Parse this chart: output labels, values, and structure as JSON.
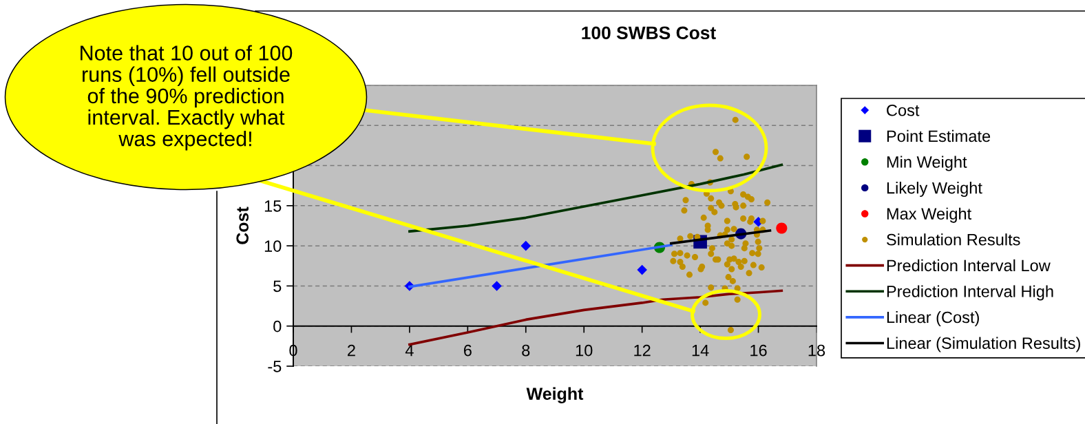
{
  "chart_data": {
    "type": "scatter",
    "title": "100 SWBS Cost",
    "xlabel": "Weight",
    "ylabel": "Cost",
    "annotations": [
      "Note that 10 out of 100 runs (10%) fell outside of the 90% prediction interval. Exactly what was expected!"
    ],
    "xlim": [
      0,
      18
    ],
    "ylim": [
      -5,
      30
    ],
    "xticks": [
      0,
      2,
      4,
      6,
      8,
      10,
      12,
      14,
      16,
      18
    ],
    "yticks": [
      -5,
      0,
      5,
      10,
      15,
      {
        "value": 20,
        "label": null
      },
      {
        "value": 25,
        "label": null
      },
      {
        "value": 30,
        "label": null
      }
    ],
    "grid": "y",
    "legend": "right",
    "series": [
      {
        "name": "Cost",
        "type": "scatter",
        "marker": "diamond",
        "color": "#0000ff",
        "x": [
          4,
          7,
          8,
          12,
          16
        ],
        "values": [
          5,
          5,
          10,
          7,
          13
        ]
      },
      {
        "name": "Point Estimate",
        "type": "scatter",
        "marker": "square",
        "color": "#000080",
        "x": [
          14.0
        ],
        "values": [
          10.5
        ]
      },
      {
        "name": "Min Weight",
        "type": "scatter",
        "marker": "circle",
        "color": "#008000",
        "x": [
          12.6
        ],
        "values": [
          9.8
        ]
      },
      {
        "name": "Likely Weight",
        "type": "scatter",
        "marker": "circle",
        "color": "#000080",
        "x": [
          15.4
        ],
        "values": [
          11.5
        ]
      },
      {
        "name": "Max Weight",
        "type": "scatter",
        "marker": "circle",
        "color": "#ff0000",
        "x": [
          16.8
        ],
        "values": [
          12.2
        ]
      },
      {
        "name": "Simulation Results",
        "type": "scatter",
        "marker": "circle",
        "color": "#bf9000",
        "x": [
          15.21,
          14.53,
          14.69,
          15.6,
          13.7,
          14.34,
          15.05,
          14.22,
          14.37,
          15.48,
          15.64,
          15.76,
          13.5,
          14.65,
          14.73,
          15.2,
          15.23,
          15.48,
          16.31,
          13.45,
          14.37,
          14.49,
          14.12,
          14.93,
          15.48,
          15.76,
          15.72,
          16.15,
          14.26,
          14.26,
          14.93,
          15.16,
          15.95,
          16.15,
          13.31,
          13.66,
          13.9,
          14.69,
          14.85,
          15.08,
          14.93,
          15.08,
          15.95,
          15.99,
          15.56,
          15.52,
          13.11,
          13.31,
          13.55,
          13.82,
          14.41,
          14.37,
          14.53,
          14.61,
          15.01,
          15.16,
          15.32,
          15.52,
          15.79,
          15.99,
          16.03,
          13.07,
          13.31,
          13.39,
          14.06,
          14.02,
          14.93,
          15.08,
          15.4,
          15.83,
          16.11,
          13.63,
          15.68,
          14.97,
          15.12,
          14.37,
          14.85,
          15.28,
          14.18,
          15.28,
          15.05
        ],
        "values": [
          25.7,
          21.7,
          20.9,
          21.1,
          17.7,
          17.9,
          16.8,
          16.5,
          15.9,
          16.4,
          16.1,
          15.8,
          15.7,
          15.4,
          15.0,
          15.2,
          14.8,
          15.0,
          15.4,
          14.4,
          14.7,
          14.2,
          13.5,
          13.1,
          13.4,
          13.4,
          13.0,
          13.1,
          12.5,
          12.0,
          12.0,
          12.1,
          12.0,
          12.0,
          10.9,
          11.2,
          11.1,
          11.3,
          11.4,
          10.8,
          10.3,
          10.0,
          11.4,
          10.5,
          10.3,
          9.7,
          9.0,
          9.1,
          8.8,
          8.6,
          9.7,
          9.0,
          8.3,
          8.3,
          8.3,
          8.4,
          8.0,
          8.1,
          9.1,
          9.0,
          9.7,
          8.1,
          8.0,
          7.4,
          7.4,
          7.1,
          7.7,
          7.1,
          7.4,
          7.6,
          7.3,
          6.4,
          6.6,
          6.1,
          5.6,
          4.8,
          4.7,
          4.7,
          2.9,
          3.3,
          -0.5
        ]
      },
      {
        "name": "Prediction Interval Low",
        "type": "line",
        "line_style": "solid",
        "color": "#800000",
        "x": [
          4,
          6,
          7,
          8,
          10,
          12,
          12.7,
          14,
          15,
          16,
          16.8
        ],
        "values": [
          -2.3,
          -0.8,
          0.0,
          0.8,
          2.0,
          2.9,
          3.3,
          3.6,
          4.0,
          4.2,
          4.4
        ]
      },
      {
        "name": "Prediction Interval High",
        "type": "line",
        "line_style": "solid",
        "color": "#003300",
        "x": [
          4,
          6,
          8,
          10,
          12,
          14,
          15.5,
          16.8
        ],
        "values": [
          11.8,
          12.5,
          13.5,
          14.9,
          16.3,
          17.7,
          18.9,
          20.1
        ]
      },
      {
        "name": "Linear (Cost)",
        "type": "line",
        "line_style": "solid",
        "color": "#3366ff",
        "x": [
          4,
          13
        ],
        "values": [
          4.9,
          10.1
        ]
      },
      {
        "name": "Linear (Simulation Results)",
        "type": "line",
        "line_style": "solid",
        "color": "#000000",
        "x": [
          13.0,
          16.4
        ],
        "values": [
          10.3,
          11.9
        ]
      }
    ]
  }
}
